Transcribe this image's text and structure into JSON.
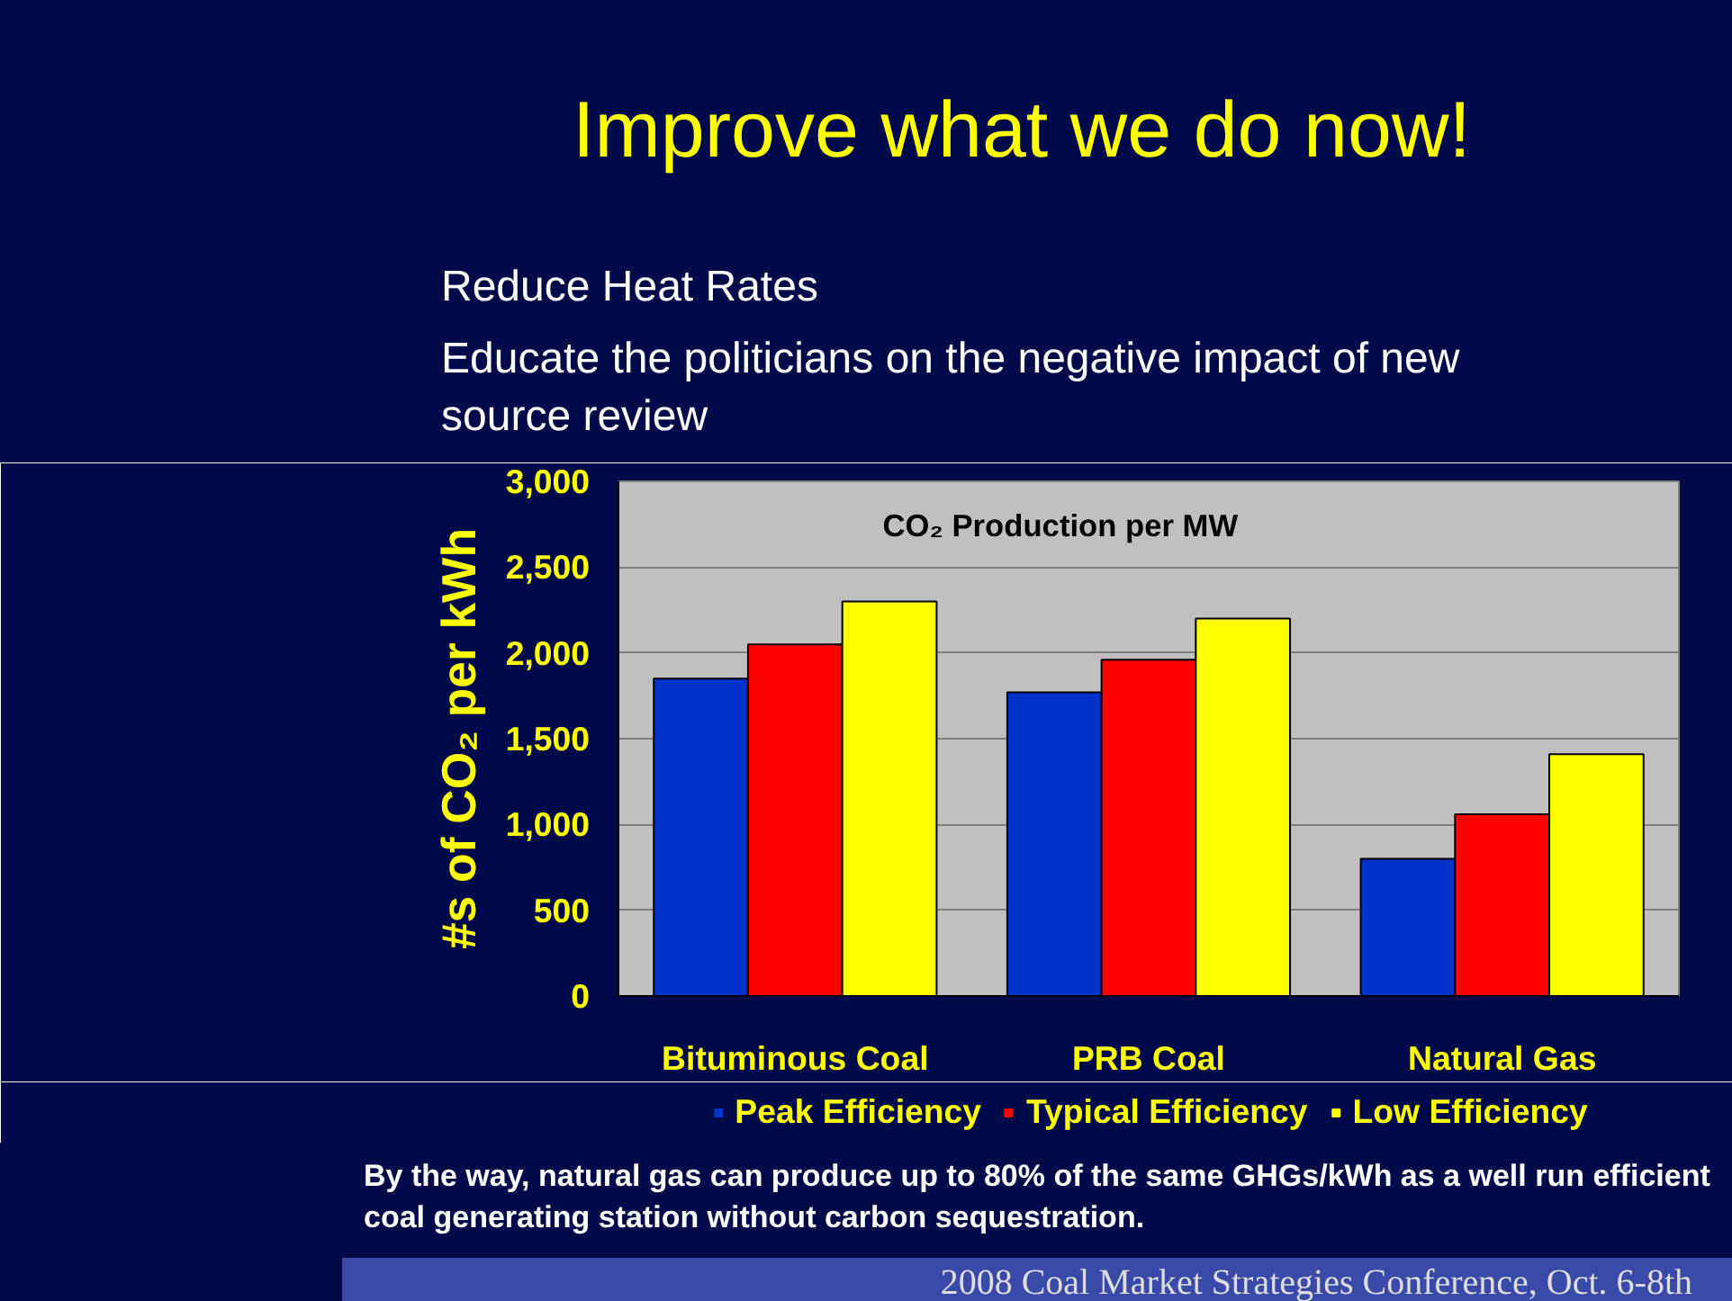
{
  "chart_data": {
    "type": "bar",
    "title": "Improve what we do now!",
    "subtitle": "CO₂ Production per MW",
    "ylabel": "#s of CO₂ per kWh",
    "categories": [
      "Bituminous Coal",
      "PRB Coal",
      "Natural Gas"
    ],
    "series": [
      {
        "name": "Peak Efficiency",
        "color": "#0033cc",
        "values": [
          1850,
          1770,
          800
        ]
      },
      {
        "name": "Typical Efficiency",
        "color": "#ff0000",
        "values": [
          2050,
          1960,
          1060
        ]
      },
      {
        "name": "Low Efficiency",
        "color": "#ffff00",
        "values": [
          2300,
          2200,
          1410
        ]
      }
    ],
    "ylim": [
      0,
      3000
    ],
    "yticks": [
      0,
      {
        "value": 500,
        "label": "500"
      },
      {
        "value": 1000,
        "label": "1,000"
      },
      {
        "value": 1500,
        "label": "1,500"
      },
      {
        "value": 2000,
        "label": "2,000"
      },
      {
        "value": 2500,
        "label": "2,500"
      },
      {
        "value": 3000,
        "label": "3,000"
      }
    ],
    "grid": "y",
    "legend": "bottom",
    "annotations": [
      "Reduce Heat Rates",
      "Educate the politicians on the negative impact of new source review",
      "By the way, natural gas can produce up to 80% of the same GHGs/kWh as a well run efficient coal generating station without carbon sequestration.",
      "2008 Coal Market Strategies Conference, Oct. 6-8th"
    ]
  }
}
